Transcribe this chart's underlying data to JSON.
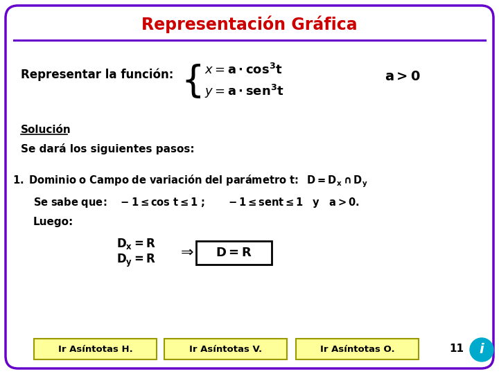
{
  "title": "Representación Gráfica",
  "title_color": "#cc0000",
  "border_color": "#6600cc",
  "background_color": "#ffffff",
  "line_color": "#6600cc",
  "text_color": "#000000",
  "button_color": "#ffff99",
  "button_border": "#999900",
  "info_bg": "#00aacc",
  "page_number": "11",
  "nav_buttons": [
    "Ir Asíntotas H.",
    "Ir Asíntotas V.",
    "Ir Asíntotas O."
  ]
}
